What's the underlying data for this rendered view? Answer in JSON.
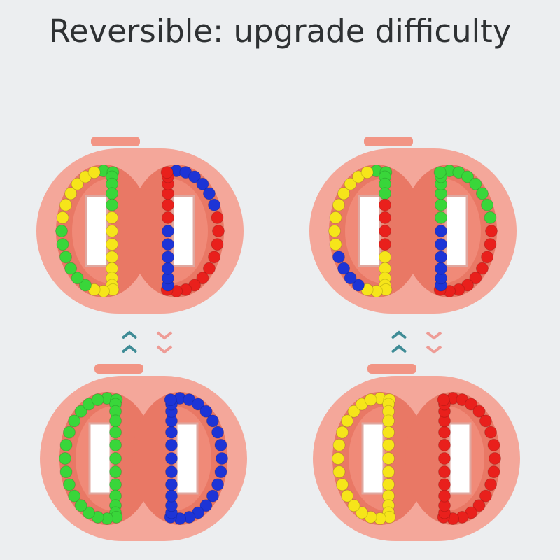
{
  "title": "Reversible: upgrade difficulty",
  "colors": {
    "background": "#eceef0",
    "body": "#f4a79a",
    "track": "#f08a78",
    "up_arrow": "#3f8c96",
    "down_arrow": "#ee9c96",
    "green": "#39d63a",
    "yellow": "#f6e51a",
    "blue": "#1d34d6",
    "red": "#e9201c"
  },
  "puzzles": [
    {
      "name": "top-left",
      "left": [
        [
          "green",
          6
        ],
        [
          "yellow",
          10
        ],
        [
          "green",
          6
        ],
        [
          "yellow",
          6
        ]
      ],
      "right": [
        [
          "blue",
          6
        ],
        [
          "red",
          10
        ],
        [
          "blue",
          6
        ],
        [
          "red",
          6
        ]
      ]
    },
    {
      "name": "top-right",
      "left": [
        [
          "green",
          5
        ],
        [
          "red",
          4
        ],
        [
          "yellow",
          7
        ],
        [
          "blue",
          4
        ],
        [
          "yellow",
          8
        ]
      ],
      "right": [
        [
          "green",
          7
        ],
        [
          "red",
          9
        ],
        [
          "blue",
          6
        ],
        [
          "green",
          6
        ]
      ]
    },
    {
      "name": "bottom-left",
      "left": [
        [
          "green",
          28
        ]
      ],
      "right": [
        [
          "blue",
          28
        ]
      ]
    },
    {
      "name": "bottom-right",
      "left": [
        [
          "yellow",
          28
        ]
      ],
      "right": [
        [
          "red",
          28
        ]
      ]
    }
  ],
  "arrows": [
    "up",
    "down",
    "up",
    "down"
  ]
}
